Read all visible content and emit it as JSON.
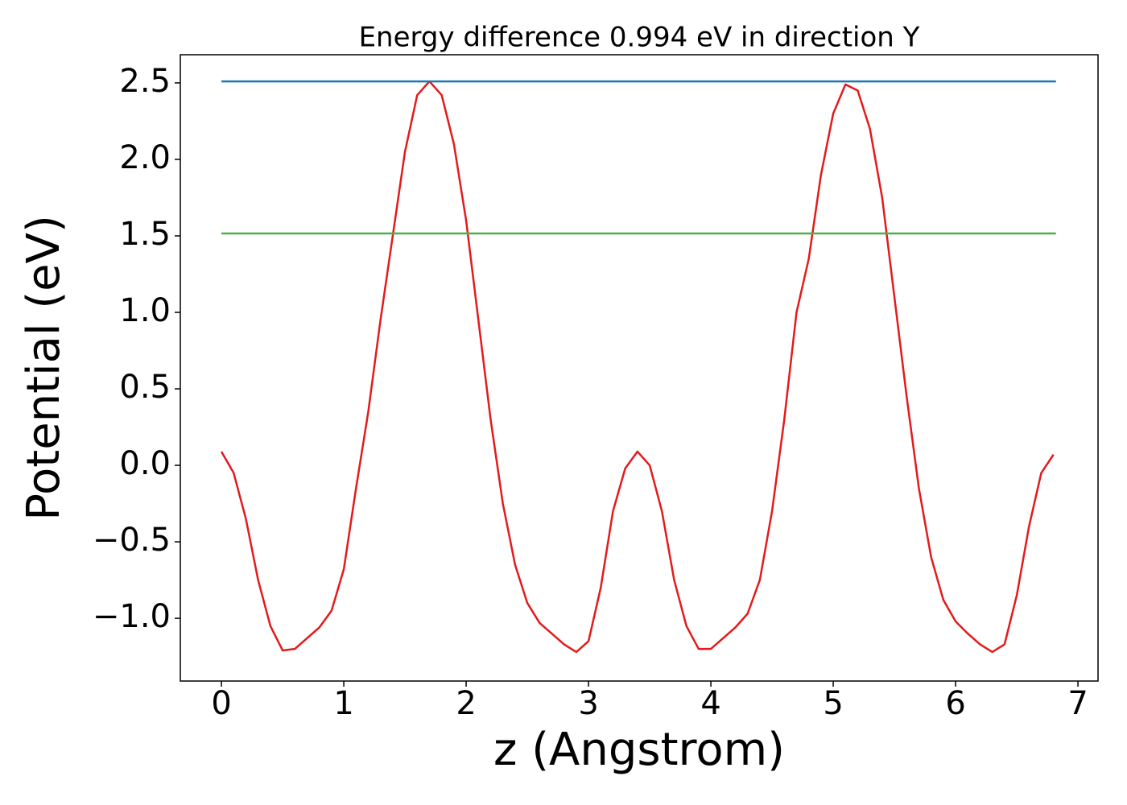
{
  "chart_data": {
    "type": "line",
    "title": "Energy difference 0.994 eV in direction Y",
    "x_label": "z (Angstrom)",
    "y_label": "Potential (eV)",
    "xlim": [
      -0.336,
      7.164
    ],
    "ylim": [
      -1.41,
      2.684
    ],
    "xticks": [
      0,
      1,
      2,
      3,
      4,
      5,
      6,
      7
    ],
    "yticks": [
      {
        "value": -1.0,
        "label": "−1.0"
      },
      {
        "value": -0.5,
        "label": "−0.5"
      },
      {
        "value": 0,
        "label": "0.0"
      },
      0.5,
      {
        "value": 1.0,
        "label": "1.0"
      },
      1.5,
      {
        "value": 2.0,
        "label": "2.0"
      },
      2.5
    ],
    "grid": false,
    "series": [
      {
        "color": "#e41a1c",
        "x": [
          0,
          0.1,
          0.2,
          0.3,
          0.4,
          0.5,
          0.6,
          0.7,
          0.8,
          0.9,
          1.0,
          1.1,
          1.2,
          1.3,
          1.4,
          1.5,
          1.6,
          1.7,
          1.8,
          1.9,
          2.0,
          2.1,
          2.2,
          2.3,
          2.4,
          2.5,
          2.6,
          2.7,
          2.8,
          2.9,
          3.0,
          3.1,
          3.2,
          3.3,
          3.4,
          3.5,
          3.6,
          3.7,
          3.8,
          3.9,
          4.0,
          4.1,
          4.2,
          4.3,
          4.4,
          4.5,
          4.6,
          4.7,
          4.8,
          4.9,
          5.0,
          5.1,
          5.2,
          5.3,
          5.4,
          5.5,
          5.6,
          5.7,
          5.8,
          5.9,
          6.0,
          6.1,
          6.2,
          6.3,
          6.4,
          6.5,
          6.6,
          6.7,
          6.8
        ],
        "values": [
          0.09,
          -0.05,
          -0.35,
          -0.75,
          -1.05,
          -1.21,
          -1.2,
          -1.13,
          -1.06,
          -0.95,
          -0.68,
          -0.15,
          0.35,
          0.95,
          1.5,
          2.05,
          2.42,
          2.51,
          2.42,
          2.1,
          1.6,
          0.95,
          0.3,
          -0.25,
          -0.65,
          -0.9,
          -1.03,
          -1.1,
          -1.17,
          -1.22,
          -1.15,
          -0.8,
          -0.3,
          -0.02,
          0.09,
          0.0,
          -0.3,
          -0.75,
          -1.05,
          -1.2,
          -1.2,
          -1.13,
          -1.06,
          -0.97,
          -0.75,
          -0.3,
          0.3,
          1.0,
          1.35,
          1.9,
          2.3,
          2.49,
          2.45,
          2.2,
          1.75,
          1.1,
          0.45,
          -0.15,
          -0.6,
          -0.88,
          -1.02,
          -1.1,
          -1.17,
          -1.22,
          -1.17,
          -0.85,
          -0.4,
          -0.05,
          0.07
        ]
      },
      {
        "color": "#1f77b4",
        "x": [
          0,
          6.82
        ],
        "values": [
          2.51,
          2.51
        ]
      },
      {
        "color": "#4daf4a",
        "x": [
          0,
          6.82
        ],
        "values": [
          1.516,
          1.516
        ]
      }
    ]
  }
}
